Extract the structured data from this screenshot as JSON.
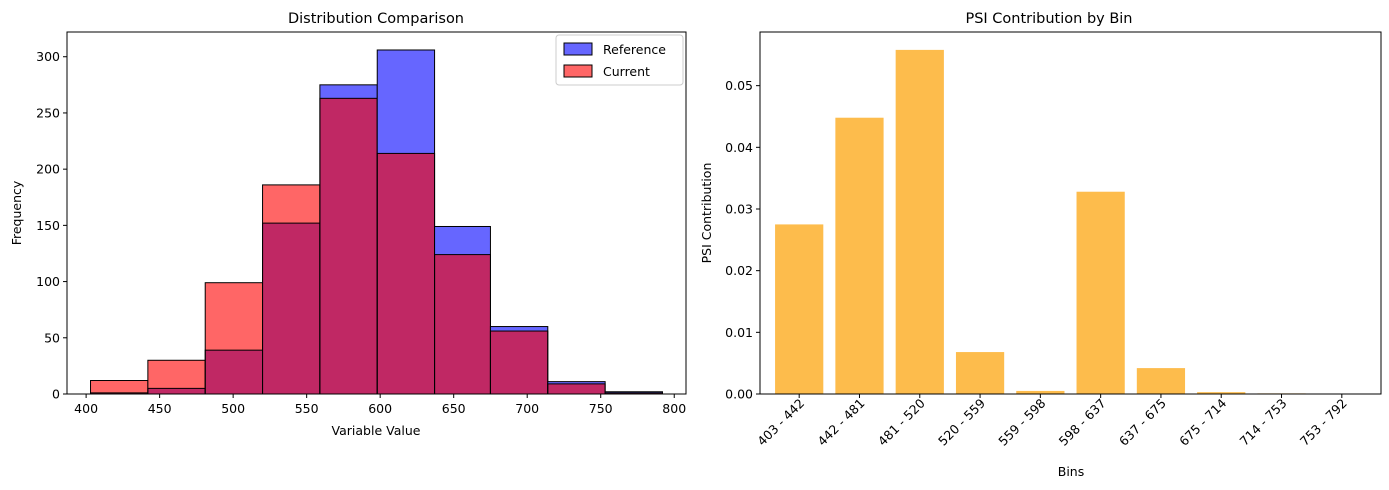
{
  "chart_data": [
    {
      "type": "bar",
      "subtype": "histogram",
      "title": "Distribution Comparison",
      "xlabel": "Variable Value",
      "ylabel": "Frequency",
      "xlim": [
        387,
        808
      ],
      "ylim": [
        0,
        322
      ],
      "xticks": [
        400,
        450,
        500,
        550,
        600,
        650,
        700,
        750,
        800
      ],
      "yticks": [
        0,
        50,
        100,
        150,
        200,
        250,
        300
      ],
      "bin_edges": [
        403,
        442,
        481,
        520,
        559,
        598,
        637,
        675,
        714,
        753,
        792
      ],
      "legend_position": "top-right",
      "grid": false,
      "series": [
        {
          "name": "Reference",
          "color": "#6666ff",
          "values": [
            1,
            5,
            39,
            152,
            275,
            306,
            149,
            60,
            11,
            2
          ]
        },
        {
          "name": "Current",
          "color": "#ff6666",
          "values": [
            12,
            30,
            99,
            186,
            263,
            214,
            124,
            56,
            9,
            1
          ]
        }
      ],
      "overlap_color": "#c02864"
    },
    {
      "type": "bar",
      "title": "PSI Contribution by Bin",
      "xlabel": "Bins",
      "ylabel": "PSI Contribution",
      "ylim": [
        0,
        0.0587
      ],
      "yticks": [
        "0.00",
        "0.01",
        "0.02",
        "0.03",
        "0.04",
        "0.05"
      ],
      "categories": [
        "403 - 442",
        "442 - 481",
        "481 - 520",
        "520 - 559",
        "559 - 598",
        "598 - 637",
        "637 - 675",
        "675 - 714",
        "714 - 753",
        "753 - 792"
      ],
      "values": [
        0.0275,
        0.0448,
        0.0558,
        0.0068,
        0.0005,
        0.0328,
        0.0042,
        0.0003,
        0.0001,
        0.0
      ],
      "color": "#fdbc4c",
      "grid": false
    }
  ]
}
